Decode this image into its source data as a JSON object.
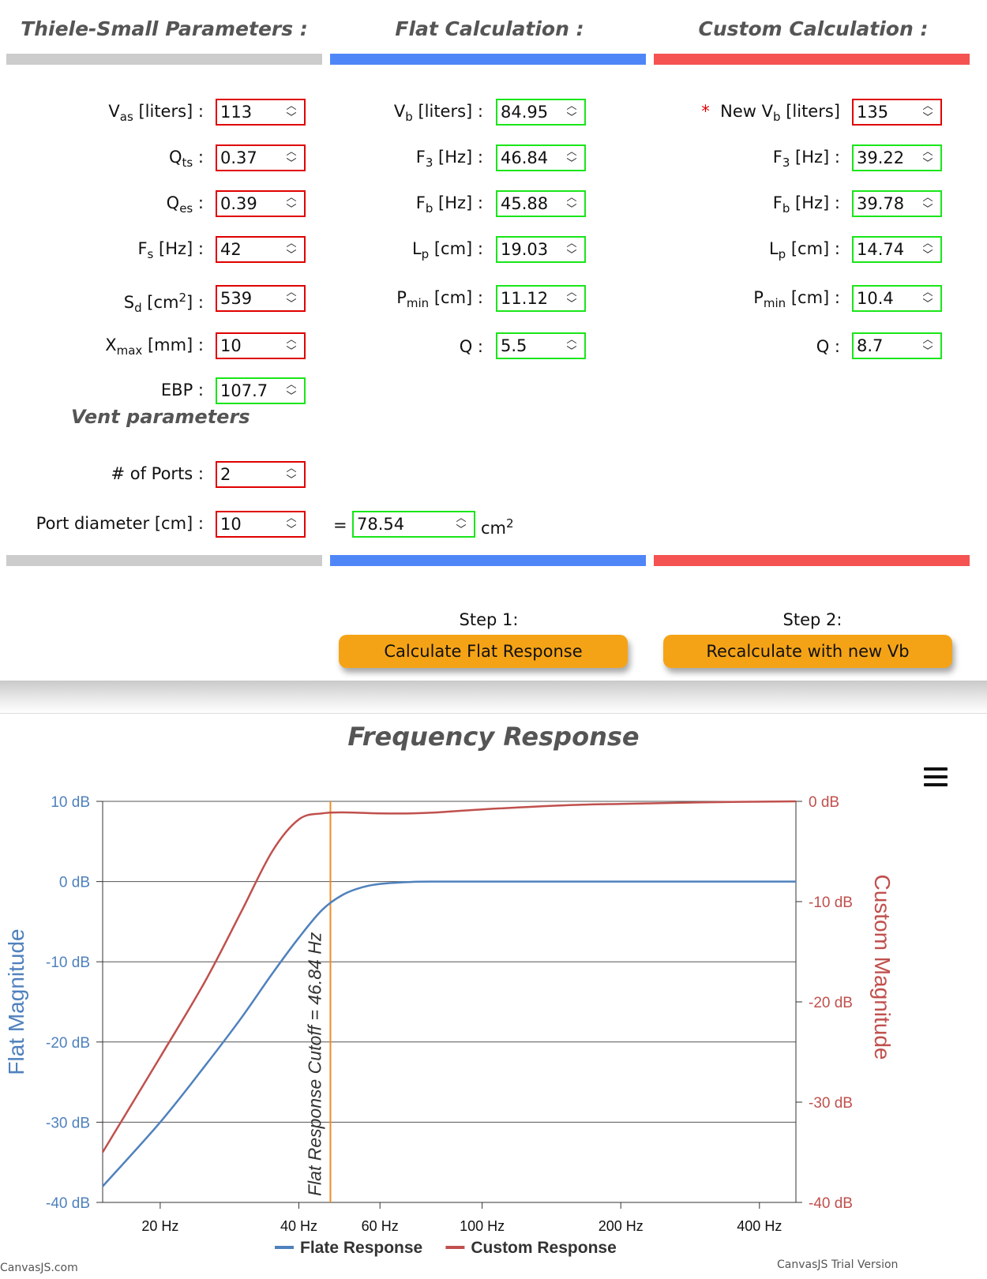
{
  "columns": {
    "ts_title": "Thiele-Small Parameters :",
    "flat_title": "Flat Calculation :",
    "custom_title": "Custom Calculation :"
  },
  "ts": {
    "vas": {
      "label": "V",
      "sub": "as",
      "suffix": " [liters] :",
      "value": "113"
    },
    "qts": {
      "label": "Q",
      "sub": "ts",
      "suffix": " :",
      "value": "0.37"
    },
    "qes": {
      "label": "Q",
      "sub": "es",
      "suffix": " :",
      "value": "0.39"
    },
    "fs": {
      "label": "F",
      "sub": "s",
      "suffix": " [Hz] :",
      "value": "42"
    },
    "sd": {
      "label": "S",
      "sub": "d",
      "mid": " [cm",
      "sup": "2",
      "suffix": "] :",
      "value": "539"
    },
    "xmax": {
      "label": "X",
      "sub": "max",
      "suffix": " [mm] :",
      "value": "10"
    },
    "ebp": {
      "label": "EBP :",
      "value": "107.7"
    }
  },
  "vent": {
    "title": "Vent parameters",
    "ports_label": "# of Ports :",
    "ports_value": "2",
    "diameter_label": "Port diameter [cm] :",
    "diameter_value": "10",
    "equals": "=",
    "area_value": "78.54",
    "area_unit": "cm",
    "area_unit_sup": "2"
  },
  "flat": {
    "vb": {
      "label": "V",
      "sub": "b",
      "suffix": " [liters] :",
      "value": "84.95"
    },
    "f3": {
      "label": "F",
      "sub": "3",
      "suffix": " [Hz] :",
      "value": "46.84"
    },
    "fb": {
      "label": "F",
      "sub": "b",
      "suffix": " [Hz] :",
      "value": "45.88"
    },
    "lp": {
      "label": "L",
      "sub": "p",
      "suffix": " [cm] :",
      "value": "19.03"
    },
    "pmin": {
      "label": "P",
      "sub": "min",
      "suffix": " [cm] :",
      "value": "11.12"
    },
    "q": {
      "label": "Q :",
      "value": "5.5"
    }
  },
  "custom": {
    "star": "*",
    "vb": {
      "label": "New V",
      "sub": "b",
      "suffix": " [liters]",
      "value": "135"
    },
    "f3": {
      "label": "F",
      "sub": "3",
      "suffix": " [Hz] :",
      "value": "39.22"
    },
    "fb": {
      "label": "F",
      "sub": "b",
      "suffix": " [Hz] :",
      "value": "39.78"
    },
    "lp": {
      "label": "L",
      "sub": "p",
      "suffix": " [cm] :",
      "value": "14.74"
    },
    "pmin": {
      "label": "P",
      "sub": "min",
      "suffix": " [cm] :",
      "value": "10.4"
    },
    "q": {
      "label": "Q :",
      "value": "8.7"
    }
  },
  "steps": {
    "step1_label": "Step 1:",
    "step1_button": "Calculate Flat Response",
    "step2_label": "Step 2:",
    "step2_button": "Recalculate with new Vb"
  },
  "icons": {
    "spinner": "up-down-arrows-icon",
    "menu": "hamburger-menu-icon"
  },
  "colors": {
    "flat": "#4f81bd",
    "custom": "#c0504d",
    "cutoff": "#f08a24",
    "button": "#f5a316"
  },
  "chart_data": {
    "type": "line",
    "title": "Frequency Response",
    "x_scale": "log",
    "x_range": [
      15,
      480
    ],
    "x_ticks": [
      20,
      40,
      60,
      100,
      200,
      400
    ],
    "x_tick_labels": [
      "20 Hz",
      "40 Hz",
      "60 Hz",
      "100 Hz",
      "200 Hz",
      "400 Hz"
    ],
    "y_left": {
      "label": "Flat Magnitude",
      "range": [
        -40,
        10
      ],
      "ticks": [
        -40,
        -30,
        -20,
        -10,
        0,
        10
      ],
      "tick_labels": [
        "-40 dB",
        "-30 dB",
        "-20 dB",
        "-10 dB",
        "0 dB",
        "10 dB"
      ]
    },
    "y_right": {
      "label": "Custom Magnitude",
      "range": [
        -40,
        0
      ],
      "ticks": [
        -40,
        -30,
        -20,
        -10,
        0
      ],
      "tick_labels": [
        "-40 dB",
        "-30 dB",
        "-20 dB",
        "-10 dB",
        "0 dB"
      ]
    },
    "grid": true,
    "legend": "bottom",
    "series": [
      {
        "name": "Flate Response",
        "axis": "left",
        "x": [
          15,
          20,
          25,
          30,
          35,
          40,
          45,
          50,
          55,
          60,
          70,
          80,
          100,
          150,
          200,
          300,
          480
        ],
        "y": [
          -38.0,
          -30.0,
          -23.0,
          -17.0,
          -11.5,
          -7.0,
          -3.5,
          -1.6,
          -0.7,
          -0.3,
          -0.05,
          0,
          0,
          0,
          0,
          0,
          0
        ]
      },
      {
        "name": "Custom Response",
        "axis": "right",
        "x": [
          15,
          20,
          25,
          30,
          35,
          40,
          45,
          50,
          60,
          70,
          80,
          100,
          150,
          200,
          300,
          480
        ],
        "y": [
          -35.0,
          -25.5,
          -18.0,
          -11.0,
          -5.0,
          -1.8,
          -1.2,
          -1.1,
          -1.2,
          -1.2,
          -1.1,
          -0.8,
          -0.4,
          -0.25,
          -0.1,
          0
        ]
      }
    ],
    "annotations": [
      {
        "type": "vertical-line",
        "x": 46.84,
        "text": "Flat Response Cutoff = 46.84 Hz"
      }
    ]
  },
  "watermarks": {
    "left": "CanvasJS.com",
    "right": "CanvasJS Trial Version"
  }
}
